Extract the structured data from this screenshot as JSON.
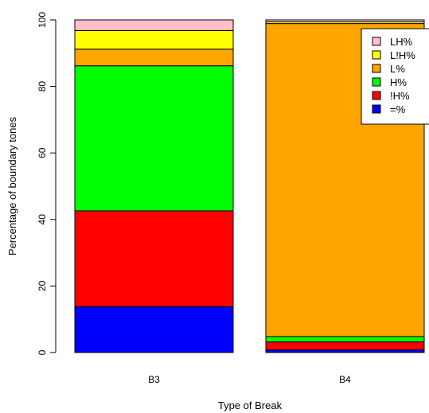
{
  "chart_data": {
    "type": "bar",
    "stacked": true,
    "categories": [
      "B3",
      "B4"
    ],
    "xlabel": "Type of Break",
    "ylabel": "Percentage of boundary tones",
    "ylim": [
      0,
      100
    ],
    "yticks": [
      0,
      20,
      40,
      60,
      80,
      100
    ],
    "grid": false,
    "legend_position": "top-right",
    "series": [
      {
        "name": "=%",
        "color": "#0000ff",
        "values": [
          13.8,
          0.8
        ]
      },
      {
        "name": "!H%",
        "color": "#ff0000",
        "values": [
          28.8,
          2.4
        ]
      },
      {
        "name": "H%",
        "color": "#00ff00",
        "values": [
          43.6,
          1.6
        ]
      },
      {
        "name": "L%",
        "color": "#ffa500",
        "values": [
          5.0,
          94.1
        ]
      },
      {
        "name": "L!H%",
        "color": "#ffff00",
        "values": [
          5.6,
          0.5
        ]
      },
      {
        "name": "LH%",
        "color": "#ffc0cb",
        "values": [
          3.2,
          0.6
        ]
      }
    ],
    "legend_order": [
      "LH%",
      "L!H%",
      "L%",
      "H%",
      "!H%",
      "=%"
    ]
  }
}
